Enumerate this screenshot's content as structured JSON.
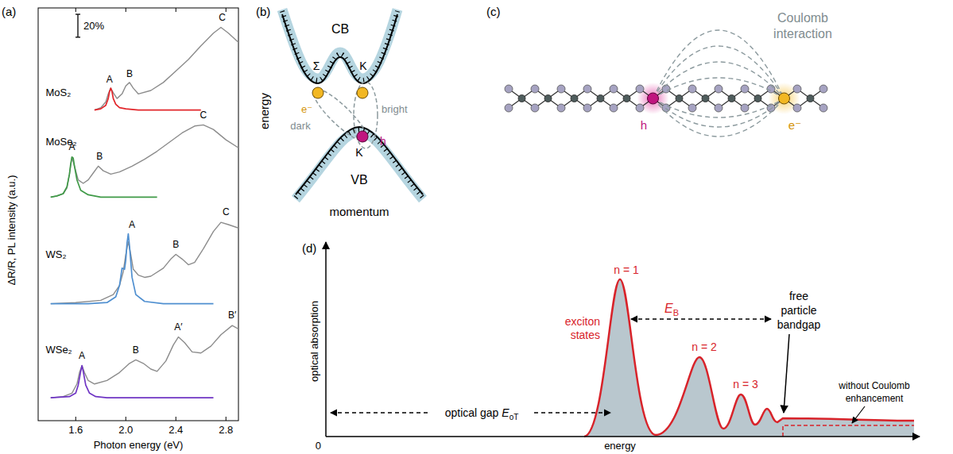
{
  "chart_data": {
    "type": "line",
    "panel_label": "(a)",
    "x_label": "Photon energy (eV)",
    "y_label": "ΔR/R, PL intensity (a.u.)",
    "xlim": [
      1.3,
      2.9
    ],
    "xticks": [
      1.6,
      {
        "value": 2,
        "label": "2.0"
      },
      2.4,
      2.8
    ],
    "ylim": [
      0,
      360
    ],
    "tick_labels": "x",
    "grid": false,
    "scale_bar": {
      "value": 20,
      "label": "20%"
    },
    "series": [
      {
        "color": "#8c8c8c",
        "x": [
          1.75,
          1.8,
          1.84,
          1.86,
          1.88,
          1.9,
          1.93,
          1.97,
          2.0,
          2.03,
          2.06,
          2.1,
          2.2,
          2.3,
          2.4,
          2.5,
          2.6,
          2.7,
          2.76,
          2.82,
          2.88,
          2.9
        ],
        "values": [
          271,
          273,
          278,
          285,
          290,
          286,
          281,
          285,
          292,
          295,
          290,
          285,
          288,
          295,
          305,
          315,
          327,
          338,
          343,
          338,
          332,
          330
        ]
      },
      {
        "color": "#e2262b",
        "x": [
          1.75,
          1.8,
          1.84,
          1.86,
          1.87,
          1.88,
          1.89,
          1.9,
          1.92,
          1.95,
          2.0,
          2.1,
          2.25,
          2.4,
          2.6
        ],
        "values": [
          271,
          272,
          275,
          281,
          287,
          290,
          287,
          281,
          276,
          273,
          272,
          271,
          271,
          271,
          271
        ]
      },
      {
        "color": "#8c8c8c",
        "x": [
          1.4,
          1.45,
          1.5,
          1.53,
          1.55,
          1.57,
          1.59,
          1.62,
          1.66,
          1.7,
          1.74,
          1.78,
          1.82,
          1.88,
          1.95,
          2.05,
          2.15,
          2.25,
          2.35,
          2.45,
          2.55,
          2.62,
          2.7,
          2.8,
          2.9
        ],
        "values": [
          195,
          196,
          198,
          203,
          215,
          230,
          222,
          210,
          207,
          210,
          216,
          222,
          218,
          215,
          217,
          222,
          228,
          235,
          243,
          251,
          257,
          258,
          254,
          245,
          238
        ]
      },
      {
        "color": "#3f9a47",
        "x": [
          1.4,
          1.45,
          1.5,
          1.53,
          1.55,
          1.56,
          1.57,
          1.58,
          1.59,
          1.61,
          1.64,
          1.7,
          1.8,
          2.0,
          2.25
        ],
        "values": [
          195,
          196,
          198,
          204,
          215,
          224,
          230,
          229,
          222,
          210,
          201,
          197,
          195,
          195,
          195
        ]
      },
      {
        "color": "#8c8c8c",
        "x": [
          1.4,
          1.6,
          1.8,
          1.9,
          1.95,
          1.98,
          2.0,
          2.02,
          2.04,
          2.06,
          2.1,
          2.15,
          2.2,
          2.3,
          2.36,
          2.4,
          2.45,
          2.5,
          2.55,
          2.62,
          2.7,
          2.76,
          2.82,
          2.9
        ],
        "values": [
          102,
          103,
          105,
          110,
          118,
          130,
          145,
          156,
          145,
          132,
          127,
          125,
          126,
          133,
          141,
          145,
          141,
          136,
          138,
          150,
          165,
          173,
          171,
          168
        ]
      },
      {
        "color": "#4f8fd0",
        "x": [
          1.4,
          1.7,
          1.85,
          1.92,
          1.95,
          1.97,
          1.99,
          2.0,
          2.01,
          2.02,
          2.03,
          2.05,
          2.08,
          2.15,
          2.3,
          2.5,
          2.7
        ],
        "values": [
          102,
          102,
          103,
          108,
          118,
          133,
          132,
          140,
          155,
          163,
          152,
          125,
          110,
          104,
          102,
          102,
          102
        ]
      },
      {
        "color": "#8c8c8c",
        "x": [
          1.4,
          1.5,
          1.57,
          1.61,
          1.63,
          1.65,
          1.67,
          1.7,
          1.75,
          1.85,
          1.95,
          2.03,
          2.08,
          2.14,
          2.2,
          2.25,
          2.32,
          2.38,
          2.42,
          2.47,
          2.53,
          2.6,
          2.68,
          2.76,
          2.85,
          2.9
        ],
        "values": [
          20,
          21,
          24,
          32,
          42,
          48,
          42,
          35,
          32,
          35,
          42,
          50,
          53,
          50,
          45,
          43,
          52,
          66,
          73,
          68,
          60,
          59,
          65,
          75,
          83,
          80
        ]
      },
      {
        "color": "#6f35c4",
        "x": [
          1.4,
          1.55,
          1.6,
          1.62,
          1.64,
          1.65,
          1.66,
          1.68,
          1.71,
          1.76,
          1.85,
          2.0,
          2.3,
          2.7
        ],
        "values": [
          20,
          21,
          24,
          31,
          43,
          48,
          43,
          31,
          24,
          21,
          20,
          20,
          20,
          20
        ]
      }
    ],
    "curve_labels": [
      {
        "text": "MoS₂",
        "x": 1.36,
        "y": 283
      },
      {
        "text": "MoSe₂",
        "x": 1.36,
        "y": 240
      },
      {
        "text": "WS₂",
        "x": 1.36,
        "y": 142
      },
      {
        "text": "WSe₂",
        "x": 1.36,
        "y": 59
      }
    ],
    "peak_labels": [
      {
        "text": "A",
        "x": 1.87,
        "y": 295
      },
      {
        "text": "B",
        "x": 2.03,
        "y": 300
      },
      {
        "text": "C",
        "x": 2.77,
        "y": 349
      },
      {
        "text": "A",
        "x": 1.57,
        "y": 236
      },
      {
        "text": "B",
        "x": 1.79,
        "y": 228
      },
      {
        "text": "C",
        "x": 2.62,
        "y": 264
      },
      {
        "text": "A",
        "x": 2.05,
        "y": 168
      },
      {
        "text": "B",
        "x": 2.4,
        "y": 151
      },
      {
        "text": "C",
        "x": 2.8,
        "y": 179
      },
      {
        "text": "A",
        "x": 1.65,
        "y": 54
      },
      {
        "text": "B",
        "x": 2.08,
        "y": 59
      },
      {
        "text": "A′",
        "x": 2.42,
        "y": 79
      },
      {
        "text": "B′",
        "x": 2.85,
        "y": 89
      }
    ]
  },
  "diagram_b": {
    "panel_label": "(b)",
    "y_label": "energy",
    "x_label": "momentum",
    "conduction_band": "CB",
    "valence_band": "VB",
    "cb_valleys": [
      "Σ",
      "K"
    ],
    "vb_valley": "K",
    "electron": "e⁻",
    "hole": "h",
    "exciton_types": [
      "dark",
      "bright"
    ]
  },
  "diagram_c": {
    "panel_label": "(c)",
    "title": "Coulomb interaction",
    "hole": "h",
    "electron": "e⁻"
  },
  "diagram_d": {
    "panel_label": "(d)",
    "y_label": "optical absorption",
    "x_label": "energy",
    "origin": "0",
    "exciton_label": "exciton states",
    "states": [
      "n = 1",
      "n = 2",
      "n = 3"
    ],
    "binding_energy": {
      "symbol": "E",
      "subscript": "B"
    },
    "optical_gap": {
      "text": "optical gap",
      "symbol": "E",
      "subscript": "oT"
    },
    "bandgap_label": "free particle bandgap",
    "uncorrelated_label": "without Coulomb enhancement"
  }
}
